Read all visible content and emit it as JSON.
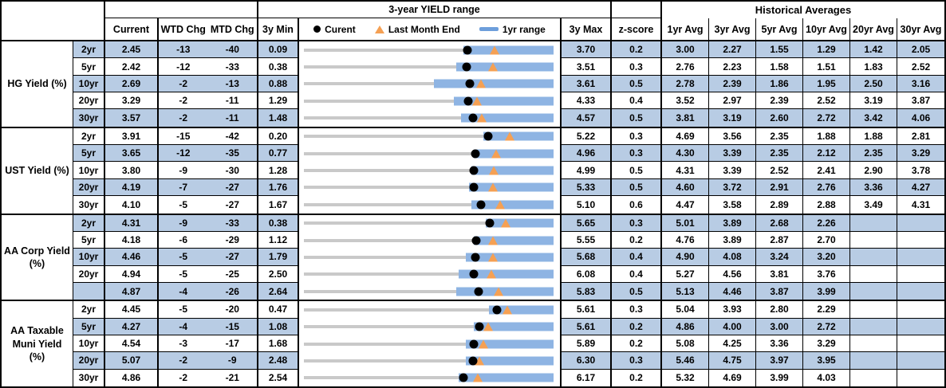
{
  "header": {
    "yield_range_title": "3-year YIELD range",
    "historical_title": "Historical Averages",
    "current": "Current",
    "wtd": "WTD Chg",
    "mtd": "MTD Chg",
    "min": "3y Min",
    "max": "3y Max",
    "z": "z-score",
    "avg_cols": [
      "1yr Avg",
      "3yr Avg",
      "5yr Avg",
      "10yr Avg",
      "20yr Avg",
      "30yr Avg"
    ],
    "legend_current": "Curent",
    "legend_last_month": "Last Month End",
    "legend_range": "1yr range"
  },
  "colors": {
    "row_shade": "#B8CCE4",
    "range_bar": "#8EB4E3",
    "track": "#C9C9C9",
    "marker_current": "#000000",
    "marker_last_month": "#F5A053",
    "legend_dash": "#6D9EDB",
    "border": "#000000"
  },
  "chart_data": {
    "type": "table",
    "title": "3-year YIELD range",
    "description": "Yield dashboard: per-row horizontal range plot scaled from 3y Min (left) to 3y Max (right); black dot = current, orange triangle = last month end, blue bar = 1yr range (bar_start is fraction of row scale).",
    "columns": [
      "Current",
      "WTD Chg",
      "MTD Chg",
      "3y Min",
      "3y Max",
      "z-score",
      "1yr Avg",
      "3yr Avg",
      "5yr Avg",
      "10yr Avg",
      "20yr Avg",
      "30yr Avg"
    ],
    "groups": [
      {
        "label": "HG Yield (%)",
        "rows": [
          {
            "tenor": "2yr",
            "current": 2.45,
            "wtd_chg": -13,
            "mtd_chg": -40,
            "min_3y": 0.09,
            "max_3y": 3.7,
            "z_score": 0.2,
            "avgs": [
              3.0,
              2.27,
              1.55,
              1.29,
              1.42,
              2.05
            ],
            "bar_start": 0.64
          },
          {
            "tenor": "5yr",
            "current": 2.42,
            "wtd_chg": -12,
            "mtd_chg": -33,
            "min_3y": 0.38,
            "max_3y": 3.51,
            "z_score": 0.3,
            "avgs": [
              2.76,
              2.23,
              1.58,
              1.51,
              1.83,
              2.52
            ],
            "bar_start": 0.61
          },
          {
            "tenor": "10yr",
            "current": 2.69,
            "wtd_chg": -2,
            "mtd_chg": -13,
            "min_3y": 0.88,
            "max_3y": 3.61,
            "z_score": 0.5,
            "avgs": [
              2.78,
              2.39,
              1.86,
              1.95,
              2.5,
              3.16
            ],
            "bar_start": 0.52
          },
          {
            "tenor": "20yr",
            "current": 3.29,
            "wtd_chg": -2,
            "mtd_chg": -11,
            "min_3y": 1.29,
            "max_3y": 4.33,
            "z_score": 0.4,
            "avgs": [
              3.52,
              2.97,
              2.39,
              2.52,
              3.19,
              3.87
            ],
            "bar_start": 0.6
          },
          {
            "tenor": "30yr",
            "current": 3.57,
            "wtd_chg": -2,
            "mtd_chg": -11,
            "min_3y": 1.48,
            "max_3y": 4.57,
            "z_score": 0.5,
            "avgs": [
              3.81,
              3.19,
              2.6,
              2.72,
              3.42,
              4.06
            ],
            "bar_start": 0.63
          }
        ]
      },
      {
        "label": "UST Yield (%)",
        "rows": [
          {
            "tenor": "2yr",
            "current": 3.91,
            "wtd_chg": -15,
            "mtd_chg": -42,
            "min_3y": 0.2,
            "max_3y": 5.22,
            "z_score": 0.3,
            "avgs": [
              4.69,
              3.56,
              2.35,
              1.88,
              1.88,
              2.81
            ],
            "bar_start": 0.72
          },
          {
            "tenor": "5yr",
            "current": 3.65,
            "wtd_chg": -12,
            "mtd_chg": -35,
            "min_3y": 0.77,
            "max_3y": 4.96,
            "z_score": 0.3,
            "avgs": [
              4.3,
              3.39,
              2.35,
              2.12,
              2.35,
              3.29
            ],
            "bar_start": 0.68
          },
          {
            "tenor": "10yr",
            "current": 3.8,
            "wtd_chg": -9,
            "mtd_chg": -30,
            "min_3y": 1.28,
            "max_3y": 4.99,
            "z_score": 0.5,
            "avgs": [
              4.31,
              3.39,
              2.52,
              2.41,
              2.9,
              3.78
            ],
            "bar_start": 0.67
          },
          {
            "tenor": "20yr",
            "current": 4.19,
            "wtd_chg": -7,
            "mtd_chg": -27,
            "min_3y": 1.76,
            "max_3y": 5.33,
            "z_score": 0.5,
            "avgs": [
              4.6,
              3.72,
              2.91,
              2.76,
              3.36,
              4.27
            ],
            "bar_start": 0.66
          },
          {
            "tenor": "30yr",
            "current": 4.1,
            "wtd_chg": -5,
            "mtd_chg": -27,
            "min_3y": 1.67,
            "max_3y": 5.1,
            "z_score": 0.6,
            "avgs": [
              4.47,
              3.58,
              2.89,
              2.88,
              3.49,
              4.31
            ],
            "bar_start": 0.67
          }
        ]
      },
      {
        "label": "AA Corp Yield\n(%)",
        "rows": [
          {
            "tenor": "2yr",
            "current": 4.31,
            "wtd_chg": -9,
            "mtd_chg": -33,
            "min_3y": 0.38,
            "max_3y": 5.65,
            "z_score": 0.3,
            "avgs": [
              5.01,
              3.89,
              2.68,
              2.26,
              null,
              null
            ],
            "bar_start": 0.73
          },
          {
            "tenor": "5yr",
            "current": 4.18,
            "wtd_chg": -6,
            "mtd_chg": -29,
            "min_3y": 1.12,
            "max_3y": 5.55,
            "z_score": 0.2,
            "avgs": [
              4.76,
              3.89,
              2.87,
              2.7,
              null,
              null
            ],
            "bar_start": 0.68
          },
          {
            "tenor": "10yr",
            "current": 4.46,
            "wtd_chg": -5,
            "mtd_chg": -27,
            "min_3y": 1.79,
            "max_3y": 5.68,
            "z_score": 0.4,
            "avgs": [
              4.9,
              4.08,
              3.24,
              3.2,
              null,
              null
            ],
            "bar_start": 0.65
          },
          {
            "tenor": "20yr",
            "current": 4.94,
            "wtd_chg": -5,
            "mtd_chg": -25,
            "min_3y": 2.5,
            "max_3y": 6.08,
            "z_score": 0.4,
            "avgs": [
              5.27,
              4.56,
              3.81,
              3.76,
              null,
              null
            ],
            "bar_start": 0.62
          },
          {
            "tenor": "",
            "current": 4.87,
            "wtd_chg": -4,
            "mtd_chg": -26,
            "min_3y": 2.64,
            "max_3y": 5.83,
            "z_score": 0.5,
            "avgs": [
              5.13,
              4.46,
              3.87,
              3.99,
              null,
              null
            ],
            "bar_start": 0.61
          }
        ]
      },
      {
        "label": "AA Taxable\nMuni Yield\n(%)",
        "rows": [
          {
            "tenor": "2yr",
            "current": 4.45,
            "wtd_chg": -5,
            "mtd_chg": -20,
            "min_3y": 0.47,
            "max_3y": 5.61,
            "z_score": 0.3,
            "avgs": [
              5.04,
              3.93,
              2.8,
              2.29,
              null,
              null
            ],
            "bar_start": 0.74
          },
          {
            "tenor": "5yr",
            "current": 4.27,
            "wtd_chg": -4,
            "mtd_chg": -15,
            "min_3y": 1.08,
            "max_3y": 5.61,
            "z_score": 0.2,
            "avgs": [
              4.86,
              4.0,
              3.0,
              2.72,
              null,
              null
            ],
            "bar_start": 0.68
          },
          {
            "tenor": "10yr",
            "current": 4.54,
            "wtd_chg": -3,
            "mtd_chg": -17,
            "min_3y": 1.68,
            "max_3y": 5.89,
            "z_score": 0.2,
            "avgs": [
              5.08,
              4.25,
              3.36,
              3.29,
              null,
              null
            ],
            "bar_start": 0.65
          },
          {
            "tenor": "20yr",
            "current": 5.07,
            "wtd_chg": -2,
            "mtd_chg": -9,
            "min_3y": 2.48,
            "max_3y": 6.3,
            "z_score": 0.3,
            "avgs": [
              5.46,
              4.75,
              3.97,
              3.95,
              null,
              null
            ],
            "bar_start": 0.65
          },
          {
            "tenor": "30yr",
            "current": 4.86,
            "wtd_chg": -2,
            "mtd_chg": -21,
            "min_3y": 2.54,
            "max_3y": 6.17,
            "z_score": 0.2,
            "avgs": [
              5.32,
              4.69,
              3.99,
              4.03,
              null,
              null
            ],
            "bar_start": 0.62
          }
        ]
      }
    ]
  }
}
